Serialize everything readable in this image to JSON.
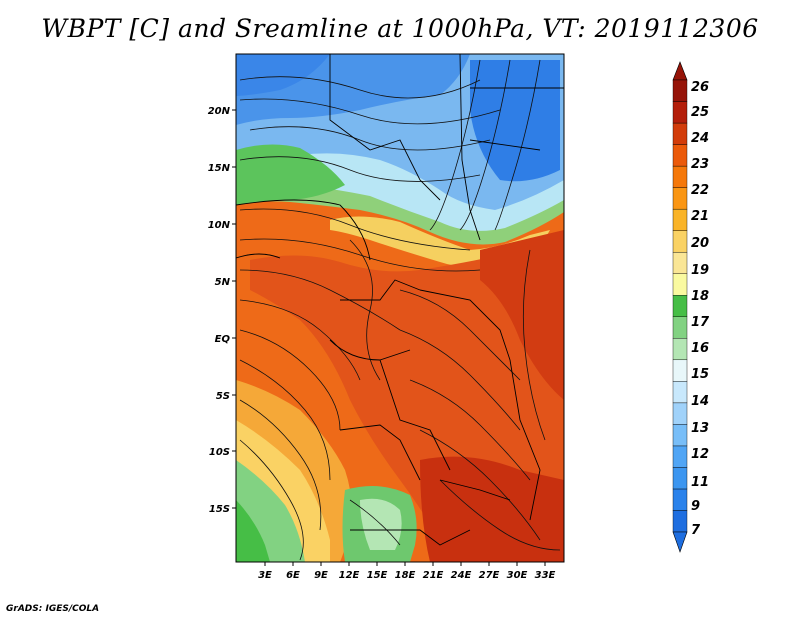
{
  "title": "WBPT [C] and Sreamline at 1000hPa, VT: 2019112306",
  "footer": "GrADS: IGES/COLA",
  "map": {
    "lon_labels": [
      "3E",
      "6E",
      "9E",
      "12E",
      "15E",
      "18E",
      "21E",
      "24E",
      "27E",
      "30E",
      "33E"
    ],
    "lat_labels": [
      "20N",
      "15N",
      "10N",
      "5N",
      "EQ",
      "5S",
      "10S",
      "15S"
    ]
  },
  "colorbar": {
    "levels": [
      "7",
      "9",
      "11",
      "12",
      "13",
      "14",
      "15",
      "16",
      "17",
      "18",
      "19",
      "20",
      "21",
      "22",
      "23",
      "24",
      "25",
      "26"
    ],
    "colors": [
      "#1e6ee0",
      "#2a82eb",
      "#3c96f0",
      "#50a5f5",
      "#78bef8",
      "#a0d2fa",
      "#c8e8fc",
      "#e8f7fa",
      "#b4e6b4",
      "#82d282",
      "#46be46",
      "#fafaa0",
      "#fae696",
      "#fad264",
      "#fab428",
      "#fa9614",
      "#f5780a",
      "#eb5a0a",
      "#d23c0a",
      "#b41e0a",
      "#961408"
    ]
  }
}
